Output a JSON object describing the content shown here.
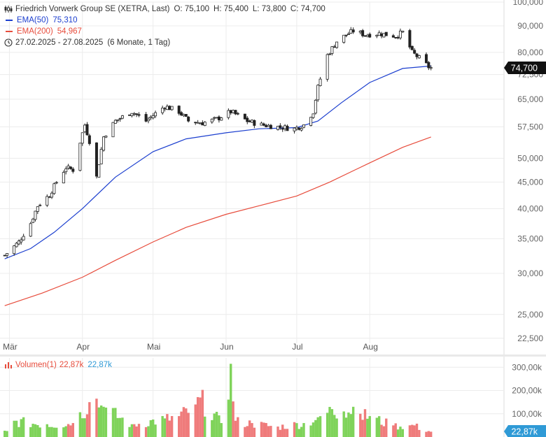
{
  "header": {
    "title": "Friedrich Vorwerk Group SE (XETRA, Last)",
    "ohlc": {
      "o_label": "O:",
      "o": "75,100",
      "h_label": "H:",
      "h": "75,400",
      "l_label": "L:",
      "l": "73,800",
      "c_label": "C:",
      "c": "74,700"
    },
    "ema50": {
      "label": "EMA(50)",
      "value": "75,310",
      "color": "#1c3fcf"
    },
    "ema200": {
      "label": "EMA(200)",
      "value": "54,967",
      "color": "#e74c3c"
    },
    "range": "27.02.2025 - 27.08.2025",
    "period": "(6 Monate, 1 Tag)",
    "icons": [
      "candlestick-icon",
      "clock-icon"
    ]
  },
  "price_tag": {
    "value": "74,700",
    "bg": "#111111"
  },
  "volume": {
    "label": "Volumen(1)",
    "value1": "22,87k",
    "value2": "22,87k",
    "tag": "22,87k",
    "tag_bg": "#2f9ad6",
    "up_color": "#7fd35a",
    "down_color": "#ef7b7b"
  },
  "chart_data": [
    {
      "type": "candlestick",
      "title": "Friedrich Vorwerk Group SE (XETRA, Last)",
      "y_scale": "log",
      "ylim": [
        22000,
        100000
      ],
      "y_ticks": [
        {
          "v": 100000,
          "label": "100,000"
        },
        {
          "v": 90000,
          "label": "90,000"
        },
        {
          "v": 80000,
          "label": "80,000"
        },
        {
          "v": 72500,
          "label": "72,500"
        },
        {
          "v": 65000,
          "label": "65,000"
        },
        {
          "v": 57500,
          "label": "57,500"
        },
        {
          "v": 50000,
          "label": "50,000"
        },
        {
          "v": 45000,
          "label": "45,000"
        },
        {
          "v": 40000,
          "label": "40,000"
        },
        {
          "v": 35000,
          "label": "35,000"
        },
        {
          "v": 30000,
          "label": "30,000"
        },
        {
          "v": 25000,
          "label": "25,000"
        },
        {
          "v": 22500,
          "label": "22,500"
        }
      ],
      "x_labels": [
        {
          "label": "Mär",
          "date": "2025-03-01"
        },
        {
          "label": "Apr",
          "date": "2025-04-01"
        },
        {
          "label": "Mai",
          "date": "2025-05-01"
        },
        {
          "label": "Jun",
          "date": "2025-06-01"
        },
        {
          "label": "Jul",
          "date": "2025-07-01"
        },
        {
          "label": "Aug",
          "date": "2025-08-01"
        }
      ],
      "series": [
        {
          "name": "Friedrich Vorwerk Group SE",
          "kind": "close",
          "points": [
            [
              "2025-02-27",
              32.5
            ],
            [
              "2025-03-05",
              34.5
            ],
            [
              "2025-03-10",
              37.5
            ],
            [
              "2025-03-13",
              40.5
            ],
            [
              "2025-03-18",
              42.5
            ],
            [
              "2025-03-21",
              45.0
            ],
            [
              "2025-03-25",
              48.0
            ],
            [
              "2025-03-28",
              47.5
            ],
            [
              "2025-04-02",
              58.0
            ],
            [
              "2025-04-04",
              54.0
            ],
            [
              "2025-04-07",
              46.0
            ],
            [
              "2025-04-10",
              55.0
            ],
            [
              "2025-04-15",
              59.0
            ],
            [
              "2025-04-22",
              61.5
            ],
            [
              "2025-04-28",
              59.0
            ],
            [
              "2025-05-02",
              61.0
            ],
            [
              "2025-05-06",
              63.0
            ],
            [
              "2025-05-12",
              61.5
            ],
            [
              "2025-05-16",
              59.0
            ],
            [
              "2025-05-22",
              58.5
            ],
            [
              "2025-05-28",
              59.5
            ],
            [
              "2025-06-03",
              61.5
            ],
            [
              "2025-06-10",
              59.0
            ],
            [
              "2025-06-16",
              58.0
            ],
            [
              "2025-06-23",
              57.5
            ],
            [
              "2025-06-30",
              57.0
            ],
            [
              "2025-07-04",
              58.0
            ],
            [
              "2025-07-08",
              61.5
            ],
            [
              "2025-07-10",
              68.5
            ],
            [
              "2025-07-14",
              79.0
            ],
            [
              "2025-07-18",
              84.0
            ],
            [
              "2025-07-22",
              86.5
            ],
            [
              "2025-07-25",
              88.0
            ],
            [
              "2025-07-30",
              86.5
            ],
            [
              "2025-08-05",
              87.0
            ],
            [
              "2025-08-12",
              86.0
            ],
            [
              "2025-08-15",
              87.5
            ],
            [
              "2025-08-19",
              80.0
            ],
            [
              "2025-08-22",
              78.0
            ],
            [
              "2025-08-26",
              75.0
            ],
            [
              "2025-08-27",
              74.7
            ]
          ]
        },
        {
          "name": "EMA(50)",
          "points": [
            [
              "2025-02-27",
              32.0
            ],
            [
              "2025-03-10",
              33.5
            ],
            [
              "2025-03-20",
              36.0
            ],
            [
              "2025-04-01",
              40.0
            ],
            [
              "2025-04-15",
              46.0
            ],
            [
              "2025-05-01",
              51.5
            ],
            [
              "2025-05-15",
              54.5
            ],
            [
              "2025-06-01",
              56.0
            ],
            [
              "2025-06-15",
              57.0
            ],
            [
              "2025-07-01",
              57.3
            ],
            [
              "2025-07-10",
              59.0
            ],
            [
              "2025-07-20",
              64.0
            ],
            [
              "2025-08-01",
              70.0
            ],
            [
              "2025-08-15",
              74.5
            ],
            [
              "2025-08-27",
              75.31
            ]
          ]
        },
        {
          "name": "EMA(200)",
          "points": [
            [
              "2025-02-27",
              26.0
            ],
            [
              "2025-03-15",
              27.5
            ],
            [
              "2025-04-01",
              29.5
            ],
            [
              "2025-04-15",
              31.8
            ],
            [
              "2025-05-01",
              34.5
            ],
            [
              "2025-05-15",
              36.8
            ],
            [
              "2025-06-01",
              39.0
            ],
            [
              "2025-06-15",
              40.5
            ],
            [
              "2025-07-01",
              42.3
            ],
            [
              "2025-07-15",
              45.0
            ],
            [
              "2025-08-01",
              49.0
            ],
            [
              "2025-08-15",
              52.5
            ],
            [
              "2025-08-27",
              54.967
            ]
          ]
        }
      ]
    },
    {
      "type": "bar",
      "title": "Volumen(1)",
      "ylim": [
        0,
        340000
      ],
      "y_ticks": [
        {
          "v": 300000,
          "label": "300,00k"
        },
        {
          "v": 200000,
          "label": "200,00k"
        },
        {
          "v": 100000,
          "label": "100,00k"
        }
      ],
      "series": [
        {
          "name": "Volumen(1)",
          "points": [
            [
              "2025-03-03",
              70000
            ],
            [
              "2025-03-17",
              55000
            ],
            [
              "2025-03-28",
              60000
            ],
            [
              "2025-04-04",
              150000
            ],
            [
              "2025-04-07",
              165000
            ],
            [
              "2025-04-10",
              130000
            ],
            [
              "2025-04-22",
              55000
            ],
            [
              "2025-05-06",
              80000
            ],
            [
              "2025-05-12",
              90000
            ],
            [
              "2025-05-19",
              140000
            ],
            [
              "2025-05-21",
              170000
            ],
            [
              "2025-05-30",
              60000
            ],
            [
              "2025-06-03",
              315000
            ],
            [
              "2025-06-05",
              70000
            ],
            [
              "2025-06-12",
              60000
            ],
            [
              "2025-06-23",
              45000
            ],
            [
              "2025-07-04",
              60000
            ],
            [
              "2025-07-10",
              85000
            ],
            [
              "2025-07-16",
              120000
            ],
            [
              "2025-07-21",
              110000
            ],
            [
              "2025-07-25",
              130000
            ],
            [
              "2025-07-28",
              100000
            ],
            [
              "2025-08-01",
              90000
            ],
            [
              "2025-08-11",
              50000
            ],
            [
              "2025-08-20",
              50000
            ],
            [
              "2025-08-27",
              22870
            ]
          ]
        }
      ]
    }
  ]
}
